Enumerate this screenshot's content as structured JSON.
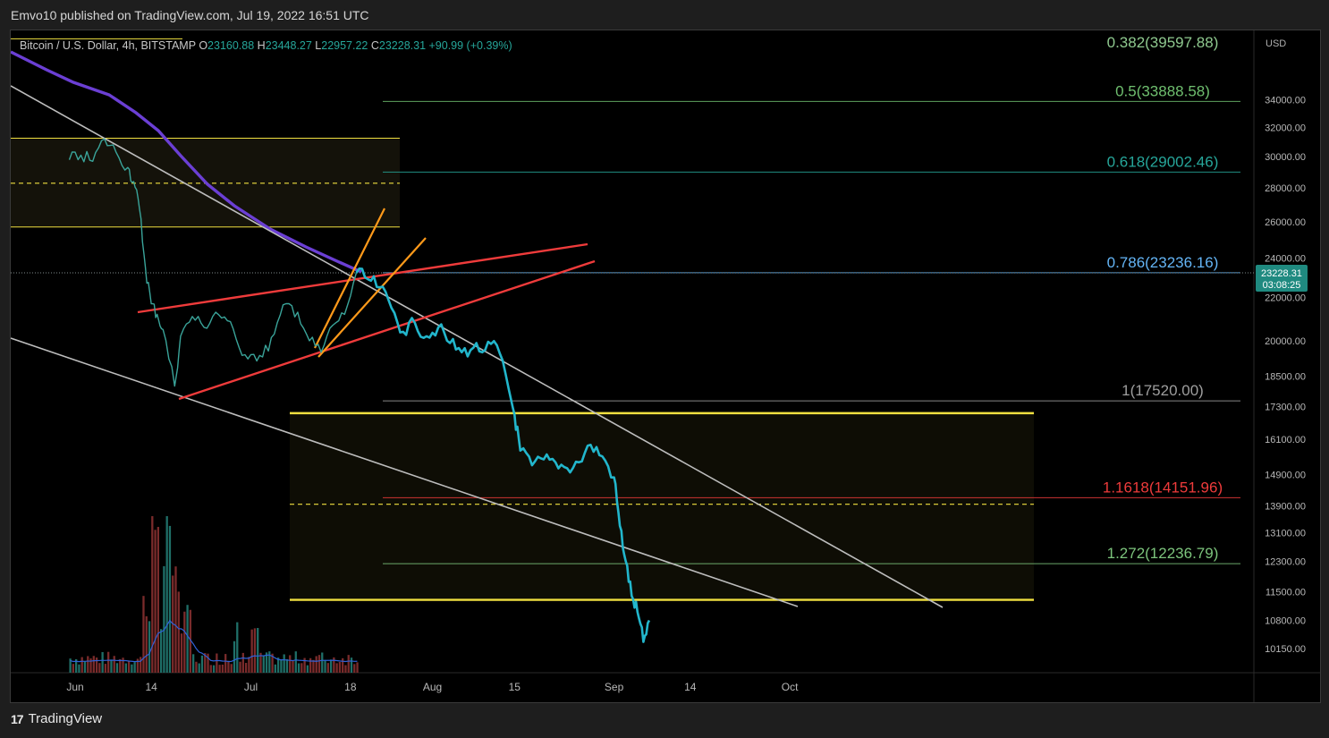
{
  "publisher": "Emvo10 published on TradingView.com, Jul 19, 2022 16:51 UTC",
  "brand": "TradingView",
  "legend": {
    "symbol": "Bitcoin / U.S. Dollar, 4h, BITSTAMP",
    "open_label": "O",
    "open": "23160.88",
    "high_label": "H",
    "high": "23448.27",
    "low_label": "L",
    "low": "22957.22",
    "close_label": "C",
    "close": "23228.31",
    "change": "+90.99 (+0.39%)"
  },
  "price_tag": {
    "price": "23228.31",
    "countdown": "03:08:25"
  },
  "colors": {
    "background": "#000000",
    "price_line": "#22b6cc",
    "ma": "#6b3fd4",
    "zone": "#f0e040",
    "wedge": "#ef3b3b",
    "channel": "#ff9a1a",
    "trend": "#bdbdbd",
    "volume_up": "#1f6f68",
    "volume_down": "#7a2b2b",
    "volume_ma": "#2f62d8"
  },
  "chart_data": {
    "type": "line",
    "symbol": "BTCUSD",
    "timeframe": "4h",
    "currency": "USD",
    "y_scale": "log",
    "ylim": [
      9700,
      41000
    ],
    "x_ticks": [
      "Jun",
      "14",
      "Jul",
      "18",
      "Aug",
      "15",
      "Sep",
      "14",
      "Oct"
    ],
    "y_ticks": [
      "34000.00",
      "32000.00",
      "30000.00",
      "28000.00",
      "26000.00",
      "24000.00",
      "22000.00",
      "20000.00",
      "18500.00",
      "17300.00",
      "16100.00",
      "14900.00",
      "13900.00",
      "13100.00",
      "12300.00",
      "11500.00",
      "10800.00",
      "10150.00"
    ],
    "fib_levels": [
      {
        "label": "0.382(39597.88)",
        "price": 39597.88,
        "color": "#8fc98f"
      },
      {
        "label": "0.5(33888.58)",
        "price": 33888.58,
        "color": "#6fbf6f"
      },
      {
        "label": "0.618(29002.46)",
        "price": 29002.46,
        "color": "#26a69a"
      },
      {
        "label": "0.786(23236.16)",
        "price": 23236.16,
        "color": "#64b5f6"
      },
      {
        "label": "1(17520.00)",
        "price": 17520.0,
        "color": "#9e9e9e"
      },
      {
        "label": "1.1618(14151.96)",
        "price": 14151.96,
        "color": "#ef3b3b"
      },
      {
        "label": "1.272(12236.79)",
        "price": 12236.79,
        "color": "#7cc47c"
      }
    ],
    "series": [
      {
        "points": [
          [
            "May 31",
            29800
          ],
          [
            "Jun 2",
            30100
          ],
          [
            "Jun 4",
            29700
          ],
          [
            "Jun 6",
            31200
          ],
          [
            "Jun 8",
            30300
          ],
          [
            "Jun 10",
            29300
          ],
          [
            "Jun 11",
            28400
          ],
          [
            "Jun 12",
            26700
          ],
          [
            "Jun 13",
            23500
          ],
          [
            "Jun 14",
            21700
          ],
          [
            "Jun 15",
            21200
          ],
          [
            "Jun 16",
            20500
          ],
          [
            "Jun 18",
            18100
          ],
          [
            "Jun 19",
            20200
          ],
          [
            "Jun 21",
            21100
          ],
          [
            "Jun 23",
            20600
          ],
          [
            "Jun 25",
            21300
          ],
          [
            "Jun 27",
            20900
          ],
          [
            "Jun 29",
            19700
          ],
          [
            "Jul 1",
            19400
          ],
          [
            "Jul 3",
            19300
          ],
          [
            "Jul 5",
            20300
          ],
          [
            "Jul 7",
            21700
          ],
          [
            "Jul 9",
            21300
          ],
          [
            "Jul 11",
            20000
          ],
          [
            "Jul 13",
            19500
          ],
          [
            "Jul 15",
            20700
          ],
          [
            "Jul 17",
            21200
          ],
          [
            "Jul 19",
            23228
          ]
        ]
      },
      {
        "points": [
          [
            "Jul 19",
            23228
          ],
          [
            "Jul 21",
            22900
          ],
          [
            "Jul 23",
            22500
          ],
          [
            "Jul 25",
            21500
          ],
          [
            "Jul 27",
            20400
          ],
          [
            "Jul 29",
            20800
          ],
          [
            "Jul 31",
            20200
          ],
          [
            "Aug 2",
            20600
          ],
          [
            "Aug 4",
            19900
          ],
          [
            "Aug 6",
            19500
          ],
          [
            "Aug 8",
            19700
          ],
          [
            "Aug 10",
            19600
          ],
          [
            "Aug 12",
            19800
          ],
          [
            "Aug 14",
            18000
          ],
          [
            "Aug 15",
            17000
          ],
          [
            "Aug 16",
            15700
          ],
          [
            "Aug 18",
            15200
          ],
          [
            "Aug 20",
            15400
          ],
          [
            "Aug 22",
            15300
          ],
          [
            "Aug 24",
            15100
          ],
          [
            "Aug 26",
            15300
          ],
          [
            "Aug 28",
            15900
          ],
          [
            "Aug 30",
            15500
          ],
          [
            "Sep 1",
            14800
          ],
          [
            "Sep 2",
            13300
          ],
          [
            "Sep 3",
            12300
          ],
          [
            "Sep 4",
            11400
          ],
          [
            "Sep 5",
            11000
          ],
          [
            "Sep 6",
            10300
          ],
          [
            "Sep 7",
            10800
          ]
        ]
      }
    ]
  }
}
